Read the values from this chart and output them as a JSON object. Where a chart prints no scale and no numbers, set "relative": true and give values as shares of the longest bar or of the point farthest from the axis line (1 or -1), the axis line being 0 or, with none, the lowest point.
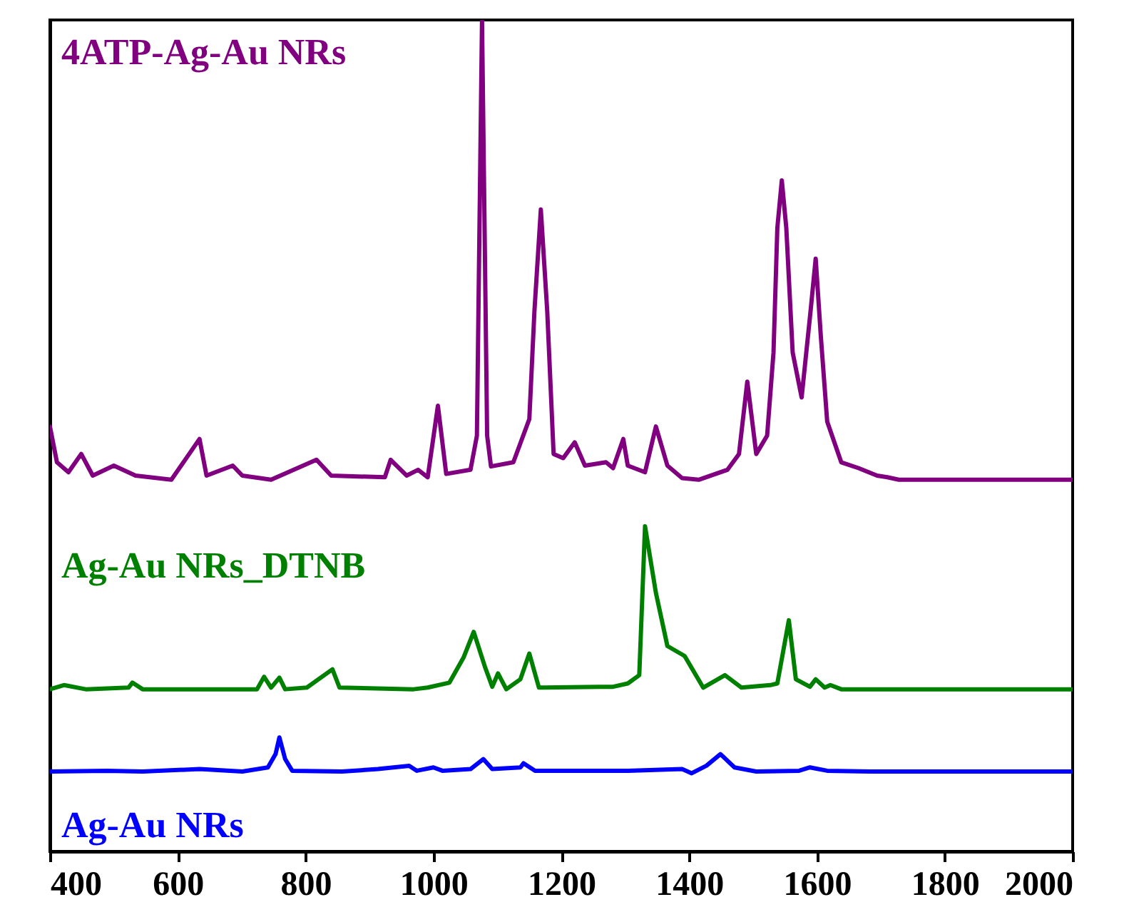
{
  "chart_data": {
    "type": "line",
    "relative": true,
    "xlim": [
      400,
      2000
    ],
    "xticks": [
      400,
      600,
      800,
      1000,
      1200,
      1400,
      1600,
      1800,
      2000
    ],
    "grid": false,
    "line_style": "solid",
    "marker": "none",
    "series": [
      {
        "name": "4ATP-Ag-Au NRs",
        "color": "#800080",
        "x": [
          400,
          411,
          429,
          449,
          467,
          500,
          534,
          590,
          634,
          645,
          686,
          701,
          746,
          817,
          840,
          924,
          933,
          958,
          976,
          991,
          1007,
          1020,
          1058,
          1068,
          1076,
          1084,
          1090,
          1125,
          1150,
          1158,
          1168,
          1178,
          1188,
          1203,
          1221,
          1237,
          1270,
          1281,
          1297,
          1304,
          1331,
          1348,
          1366,
          1389,
          1415,
          1460,
          1478,
          1491,
          1505,
          1522,
          1532,
          1538,
          1545,
          1552,
          1562,
          1576,
          1590,
          1598,
          1606,
          1616,
          1638,
          1665,
          1694,
          1710,
          1728,
          1772,
          2000
        ],
        "values": [
          0.511,
          0.468,
          0.456,
          0.478,
          0.452,
          0.464,
          0.452,
          0.447,
          0.496,
          0.452,
          0.464,
          0.452,
          0.447,
          0.471,
          0.452,
          0.45,
          0.471,
          0.452,
          0.459,
          0.45,
          0.536,
          0.454,
          0.459,
          0.5,
          1.0,
          0.5,
          0.463,
          0.468,
          0.52,
          0.65,
          0.772,
          0.65,
          0.478,
          0.473,
          0.492,
          0.464,
          0.468,
          0.461,
          0.496,
          0.464,
          0.456,
          0.511,
          0.464,
          0.449,
          0.447,
          0.459,
          0.478,
          0.565,
          0.478,
          0.5,
          0.6,
          0.75,
          0.807,
          0.75,
          0.6,
          0.546,
          0.65,
          0.713,
          0.62,
          0.517,
          0.468,
          0.461,
          0.452,
          0.45,
          0.447,
          0.447,
          0.447
        ]
      },
      {
        "name": "Ag-Au NRs_DTNB",
        "color": "#008000",
        "x": [
          400,
          422,
          456,
          523,
          529,
          545,
          724,
          735,
          746,
          759,
          768,
          802,
          842,
          853,
          969,
          991,
          1025,
          1047,
          1063,
          1081,
          1092,
          1101,
          1114,
          1136,
          1150,
          1165,
          1259,
          1281,
          1304,
          1322,
          1331,
          1348,
          1366,
          1393,
          1422,
          1456,
          1482,
          1527,
          1538,
          1556,
          1567,
          1589,
          1598,
          1612,
          1621,
          1638,
          2000
        ],
        "values": [
          0.195,
          0.2,
          0.195,
          0.197,
          0.203,
          0.195,
          0.195,
          0.21,
          0.197,
          0.209,
          0.195,
          0.197,
          0.219,
          0.197,
          0.195,
          0.197,
          0.203,
          0.233,
          0.264,
          0.221,
          0.198,
          0.214,
          0.195,
          0.207,
          0.238,
          0.197,
          0.198,
          0.198,
          0.202,
          0.212,
          0.391,
          0.311,
          0.247,
          0.235,
          0.197,
          0.212,
          0.197,
          0.2,
          0.202,
          0.278,
          0.207,
          0.198,
          0.207,
          0.197,
          0.2,
          0.195,
          0.195
        ]
      },
      {
        "name": "Ag-Au NRs",
        "color": "#0000ff",
        "x": [
          400,
          489,
          545,
          634,
          701,
          741,
          753,
          759,
          768,
          779,
          857,
          913,
          962,
          974,
          1000,
          1014,
          1058,
          1078,
          1092,
          1136,
          1141,
          1159,
          1304,
          1389,
          1404,
          1427,
          1449,
          1471,
          1505,
          1572,
          1589,
          1616,
          1683,
          2000
        ],
        "values": [
          0.096,
          0.097,
          0.096,
          0.099,
          0.096,
          0.101,
          0.117,
          0.137,
          0.111,
          0.097,
          0.096,
          0.099,
          0.103,
          0.097,
          0.101,
          0.097,
          0.099,
          0.111,
          0.099,
          0.101,
          0.106,
          0.097,
          0.097,
          0.099,
          0.094,
          0.103,
          0.117,
          0.101,
          0.096,
          0.097,
          0.101,
          0.097,
          0.096,
          0.096
        ]
      }
    ]
  }
}
